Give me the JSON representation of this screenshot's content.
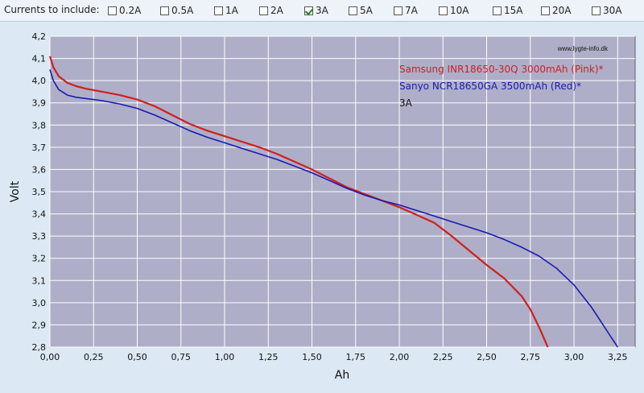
{
  "toolbar": {
    "label": "Currents to include:",
    "options": [
      {
        "label": "0.2A",
        "checked": false
      },
      {
        "label": "0.5A",
        "checked": false
      },
      {
        "label": "1A",
        "checked": false
      },
      {
        "label": "2A",
        "checked": false
      },
      {
        "label": "3A",
        "checked": true
      },
      {
        "label": "5A",
        "checked": false
      },
      {
        "label": "7A",
        "checked": false
      },
      {
        "label": "10A",
        "checked": false
      },
      {
        "label": "15A",
        "checked": false
      },
      {
        "label": "20A",
        "checked": false
      },
      {
        "label": "30A",
        "checked": false
      }
    ]
  },
  "colors": {
    "plot_bg": "#aeaec8",
    "grid": "#ffffff",
    "samsung": "#d21e1e",
    "sanyo": "#1a1ab4",
    "outer_bg": "#dce8f3"
  },
  "chart_data": {
    "type": "line",
    "xlabel": "Ah",
    "ylabel": "Volt",
    "xlim": [
      0,
      3.35
    ],
    "ylim": [
      2.8,
      4.2
    ],
    "xticks": [
      "0,00",
      "0,25",
      "0,50",
      "0,75",
      "1,00",
      "1,25",
      "1,50",
      "1,75",
      "2,00",
      "2,25",
      "2,50",
      "2,75",
      "3,00",
      "3,25"
    ],
    "yticks": [
      "2,8",
      "2,9",
      "3,0",
      "3,1",
      "3,2",
      "3,3",
      "3,4",
      "3,5",
      "3,6",
      "3,7",
      "3,8",
      "3,9",
      "4,0",
      "4,1",
      "4,2"
    ],
    "grid": true,
    "watermark": "www.lygte-info.dk",
    "legend_position": "top-right",
    "legend_note": "3A",
    "series": [
      {
        "name": "Samsung INR18650-30Q 3000mAh (Pink)*",
        "color": "#d21e1e",
        "x": [
          0.0,
          0.02,
          0.05,
          0.1,
          0.15,
          0.2,
          0.3,
          0.4,
          0.5,
          0.6,
          0.7,
          0.8,
          0.9,
          1.0,
          1.1,
          1.2,
          1.3,
          1.4,
          1.5,
          1.6,
          1.7,
          1.8,
          1.9,
          2.0,
          2.1,
          2.2,
          2.3,
          2.4,
          2.5,
          2.6,
          2.7,
          2.75,
          2.8,
          2.85
        ],
        "y": [
          4.11,
          4.06,
          4.02,
          3.99,
          3.975,
          3.965,
          3.95,
          3.935,
          3.915,
          3.885,
          3.845,
          3.805,
          3.775,
          3.75,
          3.725,
          3.7,
          3.67,
          3.635,
          3.6,
          3.56,
          3.52,
          3.49,
          3.46,
          3.43,
          3.395,
          3.36,
          3.3,
          3.235,
          3.17,
          3.11,
          3.03,
          2.97,
          2.89,
          2.8
        ]
      },
      {
        "name": "Sanyo NCR18650GA 3500mAh (Red)*",
        "color": "#1a1ab4",
        "x": [
          0.0,
          0.02,
          0.05,
          0.1,
          0.15,
          0.2,
          0.3,
          0.4,
          0.5,
          0.6,
          0.7,
          0.8,
          0.9,
          1.0,
          1.1,
          1.2,
          1.3,
          1.4,
          1.5,
          1.6,
          1.7,
          1.8,
          1.9,
          2.0,
          2.1,
          2.2,
          2.3,
          2.4,
          2.5,
          2.6,
          2.7,
          2.8,
          2.9,
          3.0,
          3.05,
          3.1,
          3.15,
          3.2,
          3.25
        ],
        "y": [
          4.05,
          4.0,
          3.96,
          3.935,
          3.925,
          3.92,
          3.91,
          3.895,
          3.875,
          3.845,
          3.81,
          3.775,
          3.745,
          3.72,
          3.695,
          3.67,
          3.645,
          3.615,
          3.585,
          3.55,
          3.515,
          3.485,
          3.46,
          3.44,
          3.415,
          3.39,
          3.365,
          3.34,
          3.315,
          3.285,
          3.25,
          3.21,
          3.155,
          3.08,
          3.03,
          2.98,
          2.92,
          2.86,
          2.8
        ]
      }
    ]
  }
}
